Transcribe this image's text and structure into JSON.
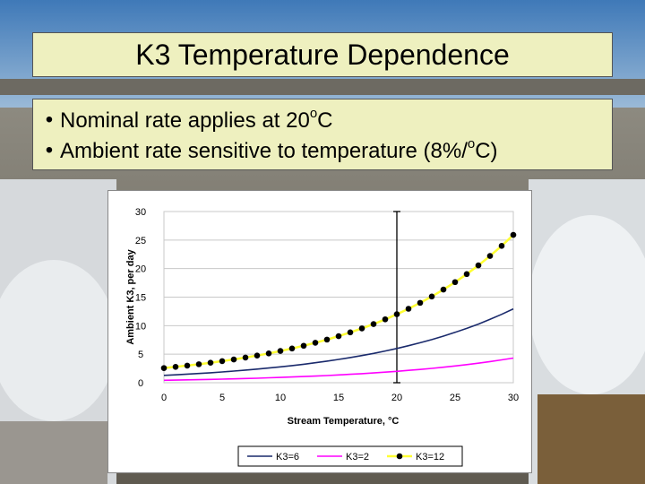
{
  "slide": {
    "title": "K3 Temperature Dependence",
    "bullets": [
      {
        "marker": "•",
        "before": "Nominal rate applies at 20",
        "sup": "o",
        "after": "C"
      },
      {
        "marker": "•",
        "before": "Ambient rate sensitive to temperature (8%/",
        "sup": "o",
        "after": "C)"
      }
    ]
  },
  "colors": {
    "box_fill": "#eef0bf",
    "k3_6": "#1a2a6c",
    "k3_2": "#ff00ff",
    "k3_12_line": "#ffff33",
    "k3_12_marker": "#000000"
  },
  "chart_data": {
    "type": "line",
    "xlabel": "Stream Temperature,   °C",
    "ylabel": "Ambient K3, per day",
    "xlim": [
      0,
      30
    ],
    "ylim": [
      0,
      30
    ],
    "xticks": [
      0,
      5,
      10,
      15,
      20,
      25,
      30
    ],
    "yticks": [
      0,
      5,
      10,
      15,
      20,
      25,
      30
    ],
    "grid": true,
    "legend_position": "bottom",
    "reference_line_x": 20,
    "x": [
      0,
      1,
      2,
      3,
      4,
      5,
      6,
      7,
      8,
      9,
      10,
      11,
      12,
      13,
      14,
      15,
      16,
      17,
      18,
      19,
      20,
      21,
      22,
      23,
      24,
      25,
      26,
      27,
      28,
      29,
      30
    ],
    "series": [
      {
        "name": "K3=6",
        "color": "#1a2a6c",
        "markers": false,
        "values": [
          1.29,
          1.39,
          1.5,
          1.62,
          1.75,
          1.89,
          2.04,
          2.21,
          2.38,
          2.57,
          2.78,
          3.0,
          3.24,
          3.5,
          3.78,
          4.08,
          4.41,
          4.76,
          5.14,
          5.56,
          6.0,
          6.48,
          7.0,
          7.56,
          8.16,
          8.82,
          9.52,
          10.28,
          11.11,
          11.99,
          12.95
        ]
      },
      {
        "name": "K3=2",
        "color": "#ff00ff",
        "markers": false,
        "values": [
          0.43,
          0.46,
          0.5,
          0.54,
          0.58,
          0.63,
          0.68,
          0.74,
          0.79,
          0.86,
          0.93,
          1.0,
          1.08,
          1.17,
          1.26,
          1.36,
          1.47,
          1.59,
          1.71,
          1.85,
          2.0,
          2.16,
          2.33,
          2.52,
          2.72,
          2.94,
          3.17,
          3.43,
          3.7,
          4.0,
          4.32
        ]
      },
      {
        "name": "K3=12",
        "color": "#ffff33",
        "markers": true,
        "values": [
          2.57,
          2.78,
          3.0,
          3.24,
          3.5,
          3.78,
          4.08,
          4.41,
          4.76,
          5.14,
          5.56,
          6.0,
          6.48,
          7.0,
          7.56,
          8.16,
          8.82,
          9.52,
          10.28,
          11.11,
          12.0,
          12.96,
          14.0,
          15.11,
          16.32,
          17.63,
          19.04,
          20.56,
          22.21,
          23.98,
          25.9
        ]
      }
    ]
  }
}
